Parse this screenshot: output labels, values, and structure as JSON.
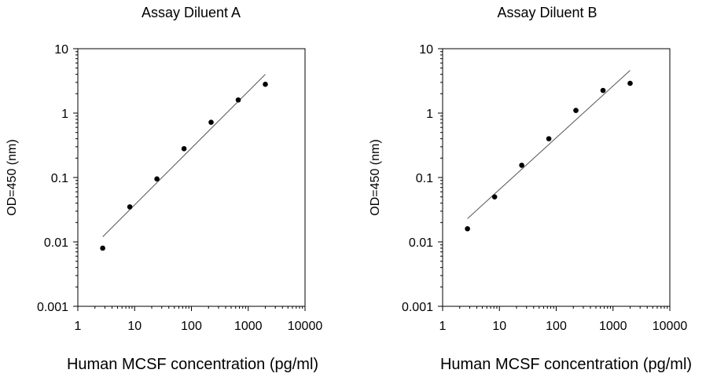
{
  "chart_data": [
    {
      "type": "scatter",
      "title": "Assay Diluent A",
      "xlabel": "Human MCSF concentration (pg/ml)",
      "ylabel": "OD=450 (nm)",
      "xscale": "log",
      "yscale": "log",
      "xlim": [
        1,
        10000
      ],
      "ylim": [
        0.001,
        10
      ],
      "xticks": [
        1,
        10,
        100,
        1000,
        10000
      ],
      "xtick_labels": [
        "1",
        "10",
        "100",
        "1000",
        "10000"
      ],
      "yticks": [
        0.001,
        0.01,
        0.1,
        1,
        10
      ],
      "ytick_labels": [
        "0.001",
        "0.01",
        "0.1",
        "1",
        "10"
      ],
      "grid": false,
      "points": [
        {
          "x": 2.74,
          "y": 0.008
        },
        {
          "x": 8.23,
          "y": 0.035
        },
        {
          "x": 24.7,
          "y": 0.095
        },
        {
          "x": 74.1,
          "y": 0.28
        },
        {
          "x": 222,
          "y": 0.72
        },
        {
          "x": 667,
          "y": 1.6
        },
        {
          "x": 2000,
          "y": 2.8
        }
      ],
      "fit_line": [
        {
          "x": 2.74,
          "y": 0.012
        },
        {
          "x": 2000,
          "y": 4.0
        }
      ]
    },
    {
      "type": "scatter",
      "title": "Assay Diluent B",
      "xlabel": "Human MCSF concentration (pg/ml)",
      "ylabel": "OD=450 (nm)",
      "xscale": "log",
      "yscale": "log",
      "xlim": [
        1,
        10000
      ],
      "ylim": [
        0.001,
        10
      ],
      "xticks": [
        1,
        10,
        100,
        1000,
        10000
      ],
      "xtick_labels": [
        "1",
        "10",
        "100",
        "1000",
        "10000"
      ],
      "yticks": [
        0.001,
        0.01,
        0.1,
        1,
        10
      ],
      "ytick_labels": [
        "0.001",
        "0.01",
        "0.1",
        "1",
        "10"
      ],
      "grid": false,
      "points": [
        {
          "x": 2.74,
          "y": 0.016
        },
        {
          "x": 8.23,
          "y": 0.05
        },
        {
          "x": 24.7,
          "y": 0.155
        },
        {
          "x": 74.1,
          "y": 0.4
        },
        {
          "x": 222,
          "y": 1.1
        },
        {
          "x": 667,
          "y": 2.25
        },
        {
          "x": 2000,
          "y": 2.9
        }
      ],
      "fit_line": [
        {
          "x": 2.74,
          "y": 0.023
        },
        {
          "x": 2000,
          "y": 4.6
        }
      ]
    }
  ]
}
